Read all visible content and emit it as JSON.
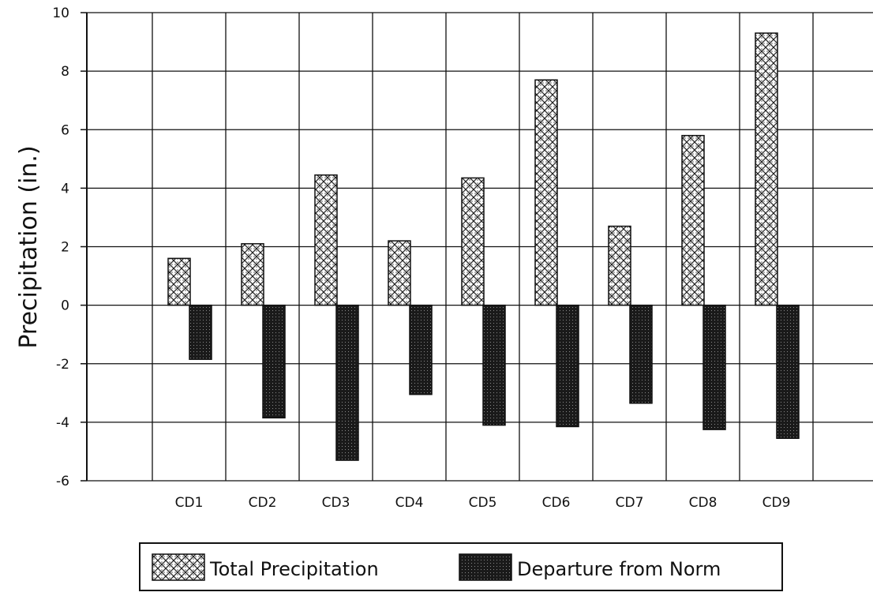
{
  "chart_data": {
    "type": "bar",
    "title": "",
    "xlabel": "",
    "ylabel": "Precipitation (in.)",
    "categories": [
      "CD1",
      "CD2",
      "CD3",
      "CD4",
      "CD5",
      "CD6",
      "CD7",
      "CD8",
      "CD9"
    ],
    "series": [
      {
        "name": "Total Precipitation",
        "pattern": "crosshatch",
        "values": [
          1.6,
          2.1,
          4.45,
          2.2,
          4.35,
          7.7,
          2.7,
          5.8,
          9.3
        ]
      },
      {
        "name": "Departure from Norm",
        "pattern": "dark-dotted",
        "values": [
          -1.85,
          -3.85,
          -5.3,
          -3.05,
          -4.1,
          -4.15,
          -3.35,
          -4.25,
          -4.55
        ]
      }
    ],
    "ylim": [
      -6,
      10
    ],
    "yticks": [
      10,
      8,
      6,
      4,
      2,
      0,
      -2,
      -4,
      -6
    ],
    "ytick_labels": [
      "10",
      "8",
      "6",
      "4",
      "2",
      "0",
      "-2",
      "-4",
      "-6"
    ],
    "grid": true,
    "legend_position": "bottom",
    "colors": {
      "ink": "#111111",
      "background": "#ffffff"
    }
  }
}
